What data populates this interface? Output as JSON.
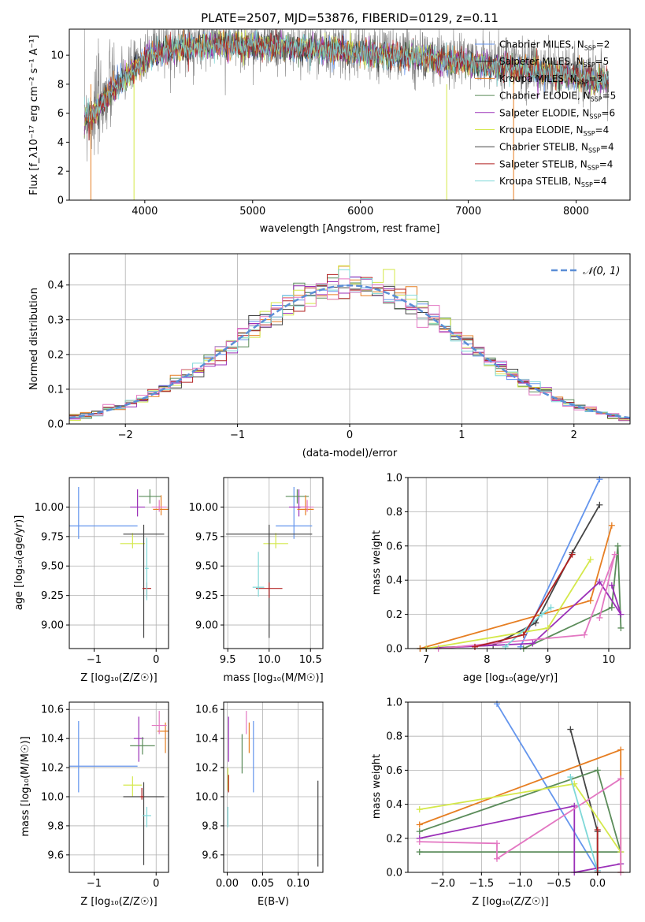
{
  "spectrum": {
    "title": "PLATE=2507, MJD=53876, FIBERID=0129, z=0.11",
    "xlabel": "wavelength [Angstrom, rest frame]",
    "ylabel": "Flux [f_λ10⁻¹⁷ erg cm⁻² s⁻¹ A⁻¹]",
    "xlim": [
      3300,
      8500
    ],
    "ylim": [
      0,
      11.8
    ],
    "xticks": [
      4000,
      5000,
      6000,
      7000,
      8000
    ],
    "yticks": [
      0,
      2,
      4,
      6,
      8,
      10
    ],
    "continuum_x": [
      3450,
      3500,
      3600,
      3700,
      3800,
      3900,
      4000,
      4100,
      4200,
      4300,
      4500,
      4700,
      5000,
      5500,
      6000,
      6500,
      7000,
      7500,
      8000,
      8300
    ],
    "continuum_y": [
      6.0,
      5.8,
      6.8,
      7.8,
      8.5,
      9.2,
      9.8,
      10.2,
      10.5,
      10.6,
      10.8,
      10.9,
      10.8,
      10.6,
      10.3,
      10.0,
      9.6,
      9.2,
      8.7,
      8.3
    ]
  },
  "legend": [
    {
      "label": "Chabrier MILES, N_SSP=2",
      "color": "#6495ED"
    },
    {
      "label": "Salpeter MILES, N_SSP=5",
      "color": "#222222"
    },
    {
      "label": "Kroupa MILES, N_SSP=3",
      "color": "#E67E22"
    },
    {
      "label": "Chabrier ELODIE, N_SSP=5",
      "color": "#5B8C5A"
    },
    {
      "label": "Salpeter ELODIE, N_SSP=6",
      "color": "#9B30B8"
    },
    {
      "label": "Kroupa ELODIE, N_SSP=4",
      "color": "#D4E84A"
    },
    {
      "label": "Chabrier STELIB, N_SSP=4",
      "color": "#444444"
    },
    {
      "label": "Salpeter STELIB, N_SSP=4",
      "color": "#B22222"
    },
    {
      "label": "Kroupa STELIB, N_SSP=4",
      "color": "#7FD8D8"
    }
  ],
  "residuals": {
    "xlabel": "(data-model)/error",
    "ylabel": "Normed distribution",
    "xlim": [
      -2.5,
      2.5
    ],
    "ylim": [
      0,
      0.49
    ],
    "xticks": [
      -2,
      -1,
      0,
      1,
      2
    ],
    "yticks": [
      0.0,
      0.1,
      0.2,
      0.3,
      0.4
    ],
    "normal_label": "𝒩(0, 1)",
    "normal_color": "#5B8ED6",
    "hist_colors": [
      "#6495ED",
      "#E67E22",
      "#5B8C5A",
      "#9B30B8",
      "#D4E84A",
      "#444444",
      "#B22222",
      "#7FD8D8",
      "#E377C2"
    ]
  },
  "panels": {
    "age_z": {
      "xlabel": "Z [log₁₀(Z/Z☉)]",
      "ylabel": "age  [log₁₀(age/yr)]",
      "xlim": [
        -1.4,
        0.2
      ],
      "ylim": [
        8.8,
        10.25
      ],
      "xticks": [
        -1,
        0
      ],
      "yticks": [
        9.0,
        9.25,
        9.5,
        9.75,
        10.0
      ],
      "points": [
        {
          "x": -1.25,
          "y": 9.84,
          "xerr": 0.95,
          "yerr": [
            0.11,
            0.33
          ],
          "color": "#6495ED"
        },
        {
          "x": -0.3,
          "y": 10.0,
          "xerr": 0.12,
          "yerr": [
            0.08,
            0.15
          ],
          "color": "#9B30B8"
        },
        {
          "x": -0.1,
          "y": 10.09,
          "xerr": 0.18,
          "yerr": [
            0.06,
            0.06
          ],
          "color": "#5B8C5A"
        },
        {
          "x": 0.08,
          "y": 9.98,
          "xerr": 0.13,
          "yerr": [
            0.05,
            0.12
          ],
          "color": "#E67E22"
        },
        {
          "x": 0.05,
          "y": 10.0,
          "xerr": 0.12,
          "yerr": [
            0.04,
            0.06
          ],
          "color": "#E377C2"
        },
        {
          "x": -0.38,
          "y": 9.69,
          "xerr": 0.2,
          "yerr": [
            0.04,
            0.09
          ],
          "color": "#D4E84A"
        },
        {
          "x": -0.2,
          "y": 9.77,
          "xerr": 0.33,
          "yerr": [
            0.88,
            0.08
          ],
          "color": "#444444"
        },
        {
          "x": -0.15,
          "y": 9.31,
          "xerr": 0.07,
          "yerr": [
            0.08,
            0.05
          ],
          "color": "#B22222"
        },
        {
          "x": -0.15,
          "y": 9.48,
          "xerr": 0.03,
          "yerr": [
            0.27,
            0.26
          ],
          "color": "#7FD8D8"
        }
      ]
    },
    "age_mass": {
      "xlabel": "mass [log₁₀(M/M☉)]",
      "xlim": [
        9.45,
        10.65
      ],
      "ylim": [
        8.8,
        10.25
      ],
      "xticks": [
        9.5,
        10.0,
        10.5
      ],
      "yticks": [
        9.0,
        9.25,
        9.5,
        9.75,
        10.0
      ],
      "points": [
        {
          "x": 10.3,
          "y": 9.84,
          "xerr": 0.22,
          "yerr": [
            0.11,
            0.33
          ],
          "color": "#6495ED"
        },
        {
          "x": 10.36,
          "y": 10.0,
          "xerr": 0.12,
          "yerr": [
            0.08,
            0.15
          ],
          "color": "#9B30B8"
        },
        {
          "x": 10.34,
          "y": 10.09,
          "xerr": 0.14,
          "yerr": [
            0.06,
            0.06
          ],
          "color": "#5B8C5A"
        },
        {
          "x": 10.44,
          "y": 9.98,
          "xerr": 0.1,
          "yerr": [
            0.05,
            0.12
          ],
          "color": "#E67E22"
        },
        {
          "x": 10.46,
          "y": 10.0,
          "xerr": 0.08,
          "yerr": [
            0.04,
            0.06
          ],
          "color": "#E377C2"
        },
        {
          "x": 10.08,
          "y": 9.69,
          "xerr": 0.15,
          "yerr": [
            0.04,
            0.09
          ],
          "color": "#D4E84A"
        },
        {
          "x": 10.0,
          "y": 9.77,
          "xerr": 0.52,
          "yerr": [
            0.88,
            0.08
          ],
          "color": "#444444"
        },
        {
          "x": 10.0,
          "y": 9.31,
          "xerr": 0.16,
          "yerr": [
            0.08,
            0.05
          ],
          "color": "#B22222"
        },
        {
          "x": 9.87,
          "y": 9.32,
          "xerr": 0.07,
          "yerr": [
            0.08,
            0.3
          ],
          "color": "#7FD8D8"
        }
      ]
    },
    "mass_z": {
      "xlabel": "Z [log₁₀(Z/Z☉)]",
      "ylabel": "mass [log₁₀(M/M☉)]",
      "xlim": [
        -1.4,
        0.2
      ],
      "ylim": [
        9.48,
        10.65
      ],
      "xticks": [
        -1,
        0
      ],
      "yticks": [
        9.6,
        9.8,
        10.0,
        10.2,
        10.4,
        10.6
      ],
      "points": [
        {
          "x": -1.25,
          "y": 10.21,
          "xerr": 0.95,
          "yerr": [
            0.18,
            0.31
          ],
          "color": "#6495ED"
        },
        {
          "x": -0.28,
          "y": 10.4,
          "xerr": 0.08,
          "yerr": [
            0.16,
            0.15
          ],
          "color": "#9B30B8"
        },
        {
          "x": -0.22,
          "y": 10.35,
          "xerr": 0.2,
          "yerr": [
            0.06,
            0.06
          ],
          "color": "#5B8C5A"
        },
        {
          "x": 0.15,
          "y": 10.45,
          "xerr": 0.13,
          "yerr": [
            0.15,
            0.06
          ],
          "color": "#E67E22"
        },
        {
          "x": 0.05,
          "y": 10.49,
          "xerr": 0.12,
          "yerr": [
            0.06,
            0.1
          ],
          "color": "#E377C2"
        },
        {
          "x": -0.38,
          "y": 10.08,
          "xerr": 0.15,
          "yerr": [
            0.08,
            0.06
          ],
          "color": "#D4E84A"
        },
        {
          "x": -0.2,
          "y": 10.0,
          "xerr": 0.33,
          "yerr": [
            0.47,
            0.1
          ],
          "color": "#444444"
        },
        {
          "x": -0.23,
          "y": 10.0,
          "xerr": 0.03,
          "yerr": [
            0.02,
            0.06
          ],
          "color": "#B22222"
        },
        {
          "x": -0.15,
          "y": 9.87,
          "xerr": 0.07,
          "yerr": [
            0.08,
            0.06
          ],
          "color": "#7FD8D8"
        }
      ]
    },
    "mass_ebv": {
      "xlabel": "E(B-V)",
      "xlim": [
        -0.005,
        0.135
      ],
      "ylim": [
        9.48,
        10.65
      ],
      "xticks": [
        0.0,
        0.05,
        0.1
      ],
      "xticklabels": [
        "0.00",
        "0.05",
        "0.10"
      ],
      "yticks": [
        9.6,
        9.8,
        10.0,
        10.2,
        10.4,
        10.6
      ],
      "points": [
        {
          "x": 0.037,
          "y": 10.21,
          "yerr": [
            0.18,
            0.31
          ],
          "color": "#6495ED"
        },
        {
          "x": 0.002,
          "y": 10.4,
          "yerr": [
            0.16,
            0.15
          ],
          "color": "#9B30B8"
        },
        {
          "x": 0.021,
          "y": 10.29,
          "yerr": [
            0.13,
            0.14
          ],
          "color": "#5B8C5A"
        },
        {
          "x": 0.031,
          "y": 10.45,
          "yerr": [
            0.15,
            0.06
          ],
          "color": "#E67E22"
        },
        {
          "x": 0.027,
          "y": 10.49,
          "yerr": [
            0.06,
            0.1
          ],
          "color": "#E377C2"
        },
        {
          "x": 0.001,
          "y": 10.12,
          "yerr": [
            0.08,
            0.08
          ],
          "color": "#D4E84A"
        },
        {
          "x": 0.128,
          "y": 9.82,
          "yerr": [
            0.3,
            0.29
          ],
          "color": "#444444"
        },
        {
          "x": 0.002,
          "y": 10.09,
          "yerr": [
            0.06,
            0.06
          ],
          "color": "#B22222"
        },
        {
          "x": 0.001,
          "y": 9.87,
          "yerr": [
            0.08,
            0.06
          ],
          "color": "#7FD8D8"
        }
      ]
    },
    "mw_age": {
      "xlabel": "age  [log₁₀(age/yr)]",
      "ylabel": "mass weight",
      "xlim": [
        6.7,
        10.35
      ],
      "ylim": [
        0,
        1
      ],
      "xticks": [
        7,
        8,
        9,
        10
      ],
      "yticks": [
        0.0,
        0.2,
        0.4,
        0.6,
        0.8,
        1.0
      ],
      "series": [
        {
          "color": "#6495ED",
          "x": [
            8.55,
            9.85
          ],
          "y": [
            0.01,
            0.99
          ]
        },
        {
          "color": "#444444",
          "x": [
            6.9,
            8.1,
            8.8,
            9.4,
            9.85
          ],
          "y": [
            0.0,
            0.02,
            0.15,
            0.56,
            0.84
          ]
        },
        {
          "color": "#E67E22",
          "x": [
            6.9,
            9.7,
            10.05
          ],
          "y": [
            0.0,
            0.28,
            0.72
          ]
        },
        {
          "color": "#5B8C5A",
          "x": [
            8.6,
            10.05,
            10.15,
            10.2
          ],
          "y": [
            0.0,
            0.24,
            0.6,
            0.12
          ]
        },
        {
          "color": "#9B30B8",
          "x": [
            7.0,
            8.75,
            9.85,
            10.2,
            10.05
          ],
          "y": [
            0.0,
            0.03,
            0.39,
            0.2,
            0.37
          ]
        },
        {
          "color": "#D4E84A",
          "x": [
            7.0,
            9.0,
            9.7
          ],
          "y": [
            0.0,
            0.12,
            0.52
          ]
        },
        {
          "color": "#E377C2",
          "x": [
            7.2,
            9.6,
            10.1,
            9.85
          ],
          "y": [
            0.0,
            0.08,
            0.55,
            0.18
          ]
        },
        {
          "color": "#7FD8D8",
          "x": [
            8.3,
            8.9,
            9.05
          ],
          "y": [
            0.01,
            0.2,
            0.24
          ]
        },
        {
          "color": "#B22222",
          "x": [
            7.8,
            8.6,
            9.4
          ],
          "y": [
            0.01,
            0.08,
            0.55
          ]
        }
      ]
    },
    "mw_z": {
      "xlabel": "Z [log₁₀(Z/Z☉)]",
      "ylabel": "mass weight",
      "xlim": [
        -2.45,
        0.42
      ],
      "ylim": [
        0,
        1
      ],
      "xticks": [
        -2.0,
        -1.5,
        -1.0,
        -0.5,
        0.0
      ],
      "xticklabels": [
        "−2.0",
        "−1.5",
        "−1.0",
        "−0.5",
        "0.0"
      ],
      "yticks": [
        0.0,
        0.2,
        0.4,
        0.6,
        0.8,
        1.0
      ],
      "series": [
        {
          "color": "#6495ED",
          "x": [
            -1.3,
            0.0
          ],
          "y": [
            0.99,
            0.01
          ]
        },
        {
          "color": "#444444",
          "x": [
            -0.35,
            0.0,
            0.0
          ],
          "y": [
            0.84,
            0.24,
            0.0
          ]
        },
        {
          "color": "#E67E22",
          "x": [
            -2.3,
            0.3,
            0.3
          ],
          "y": [
            0.28,
            0.72,
            0.0
          ]
        },
        {
          "color": "#5B8C5A",
          "x": [
            -2.3,
            0.0,
            0.3,
            -2.3
          ],
          "y": [
            0.24,
            0.6,
            0.12,
            0.12
          ]
        },
        {
          "color": "#9B30B8",
          "x": [
            -2.3,
            -0.3,
            -0.3,
            0.3
          ],
          "y": [
            0.2,
            0.39,
            0.0,
            0.05
          ]
        },
        {
          "color": "#D4E84A",
          "x": [
            -2.3,
            -0.3,
            0.3
          ],
          "y": [
            0.37,
            0.52,
            0.12
          ]
        },
        {
          "color": "#E377C2",
          "x": [
            -2.3,
            -1.3,
            -1.3,
            0.3,
            0.3
          ],
          "y": [
            0.18,
            0.17,
            0.08,
            0.55,
            0.0
          ]
        },
        {
          "color": "#7FD8D8",
          "x": [
            -0.35,
            0.0
          ],
          "y": [
            0.56,
            0.01
          ]
        },
        {
          "color": "#B22222",
          "x": [
            0.0,
            0.0
          ],
          "y": [
            0.25,
            0.0
          ]
        }
      ]
    }
  }
}
